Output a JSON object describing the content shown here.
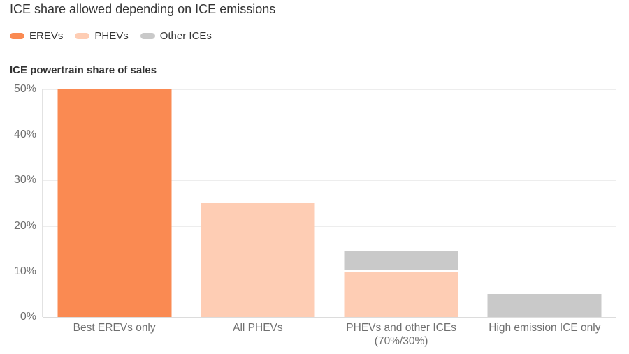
{
  "header": {
    "title": "ICE share allowed depending on ICE emissions"
  },
  "colors": {
    "erev_orange": "#FA8A52",
    "phev_peach": "#FECDB4",
    "other_ice_gray": "#C9C9C9",
    "text_dark": "#333333",
    "text_muted": "#6F6F6F",
    "gridline": "#EDEDED"
  },
  "chart_data": {
    "type": "bar",
    "stacked": true,
    "title": "ICE share allowed depending on ICE emissions",
    "ylabel": "ICE powertrain share of sales",
    "xlabel": "",
    "categories": [
      "Best EREVs only",
      "All PHEVs",
      "PHEVs and other ICEs\n(70%/30%)",
      "High emission ICE only"
    ],
    "series": [
      {
        "name": "EREVs",
        "color": "#FA8A52",
        "values": [
          50,
          0,
          0,
          0
        ]
      },
      {
        "name": "PHEVs",
        "color": "#FECDB4",
        "values": [
          0,
          25,
          10,
          0
        ]
      },
      {
        "name": "Other ICEs",
        "color": "#C9C9C9",
        "values": [
          0,
          0,
          4.3,
          5
        ]
      }
    ],
    "ylim": [
      0,
      50
    ],
    "yticks": [
      {
        "value": 0,
        "label": "0%"
      },
      {
        "value": 10,
        "label": "10%"
      },
      {
        "value": 20,
        "label": "20%"
      },
      {
        "value": 30,
        "label": "30%"
      },
      {
        "value": 40,
        "label": "40%"
      },
      {
        "value": 50,
        "label": "50%"
      }
    ],
    "grid": "horizontal",
    "legend_position": "top-left"
  }
}
